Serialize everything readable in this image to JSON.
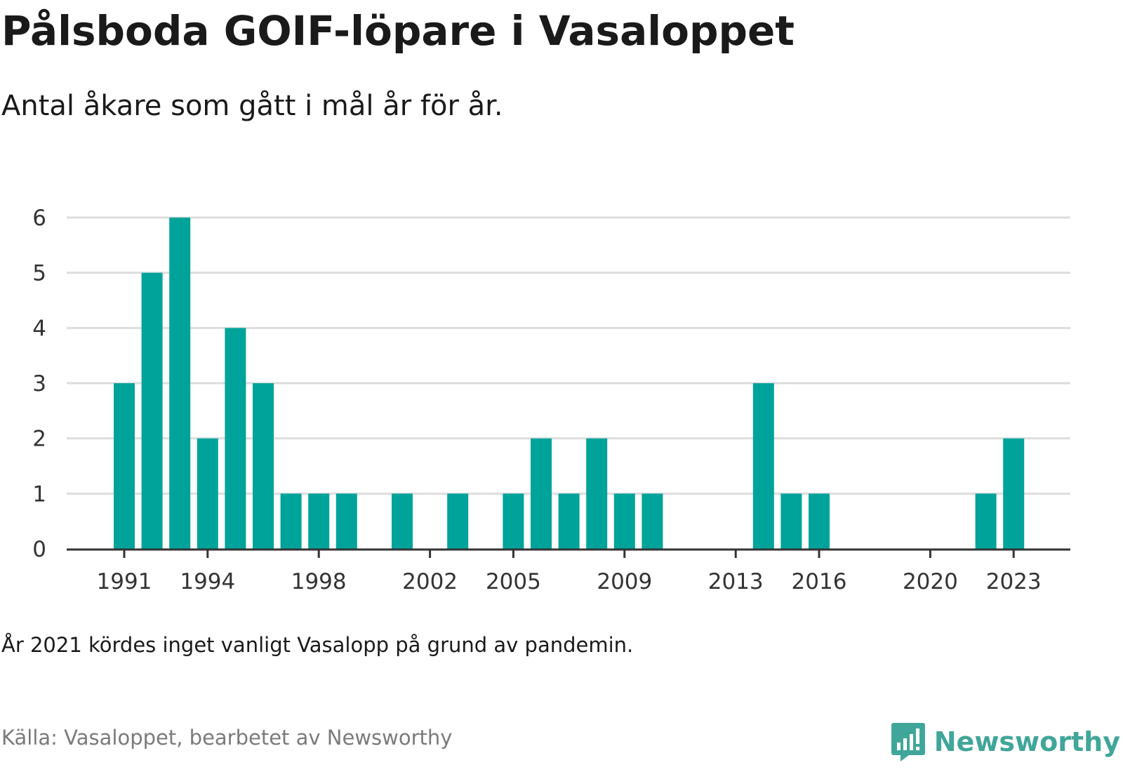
{
  "header": {
    "title": "Pålsboda GOIF-löpare i Vasaloppet",
    "subtitle": "Antal åkare som gått i mål år för år."
  },
  "footer": {
    "note": "År 2021 kördes inget vanligt Vasalopp på grund av pandemin.",
    "source": "Källa: Vasaloppet, bearbetet av Newsworthy",
    "brand": "Newsworthy",
    "brand_icon": "newsworthy-logo-icon"
  },
  "colors": {
    "bar": "#00a39a",
    "grid": "#dddddd",
    "axis": "#333333",
    "brand": "#41a69a"
  },
  "chart_data": {
    "type": "bar",
    "title": "Pålsboda GOIF-löpare i Vasaloppet",
    "subtitle": "Antal åkare som gått i mål år för år.",
    "xlabel": "",
    "ylabel": "",
    "ylim": [
      0,
      6
    ],
    "yticks": [
      0,
      1,
      2,
      3,
      4,
      5,
      6
    ],
    "xticks": [
      1991,
      1994,
      1998,
      2002,
      2005,
      2009,
      2013,
      2016,
      2020,
      2023
    ],
    "x_range": [
      1991,
      2023
    ],
    "grid": true,
    "legend": "none",
    "categories": [
      1991,
      1992,
      1993,
      1994,
      1995,
      1996,
      1997,
      1998,
      1999,
      2000,
      2001,
      2002,
      2003,
      2004,
      2005,
      2006,
      2007,
      2008,
      2009,
      2010,
      2011,
      2012,
      2013,
      2014,
      2015,
      2016,
      2017,
      2018,
      2019,
      2020,
      2021,
      2022,
      2023
    ],
    "values": [
      3,
      5,
      6,
      2,
      4,
      3,
      1,
      1,
      1,
      0,
      1,
      0,
      1,
      0,
      1,
      2,
      1,
      2,
      1,
      1,
      0,
      0,
      0,
      3,
      1,
      1,
      0,
      0,
      0,
      0,
      0,
      1,
      2
    ]
  }
}
